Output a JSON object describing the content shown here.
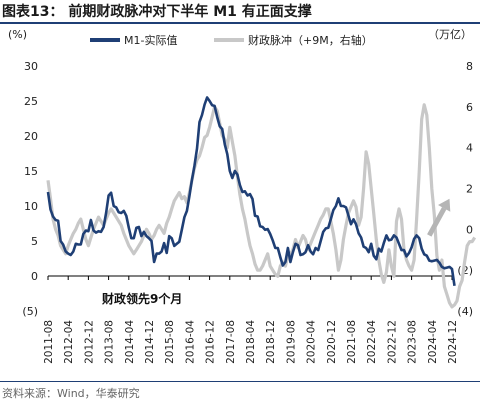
{
  "figure": {
    "title": "图表13：  前期财政脉冲对下半年 M1 有正面支撑",
    "source": "资料来源：Wind，华泰研究"
  },
  "chart_data": {
    "type": "line",
    "left_axis": {
      "unit_label": "(%)",
      "ylim": [
        -5,
        30
      ],
      "ticks": [
        -5,
        0,
        5,
        10,
        15,
        20,
        25,
        30
      ],
      "tick_labels": [
        "(5)",
        "0",
        "5",
        "10",
        "15",
        "20",
        "25",
        "30"
      ]
    },
    "right_axis": {
      "unit_label": "（万亿）",
      "ylim": [
        -4,
        8
      ],
      "ticks": [
        -4,
        -2,
        0,
        2,
        4,
        6,
        8
      ],
      "tick_labels": [
        "(4)",
        "(2)",
        "0",
        "2",
        "4",
        "6",
        "8"
      ]
    },
    "x_ticks": [
      "2011-08",
      "2012-04",
      "2012-12",
      "2013-08",
      "2014-04",
      "2014-12",
      "2015-08",
      "2016-04",
      "2016-12",
      "2017-08",
      "2018-04",
      "2018-12",
      "2019-08",
      "2020-04",
      "2020-12",
      "2021-08",
      "2022-04",
      "2022-12",
      "2023-08",
      "2024-04",
      "2024-12"
    ],
    "grid": false,
    "legend_position": "top",
    "annotation": "财政领先9个月",
    "series": [
      {
        "name": "M1-实际值",
        "axis": "left",
        "color": "#1f3f75",
        "start": "2011-08",
        "values": [
          12.0,
          9.5,
          8.5,
          8.0,
          7.9,
          5.0,
          4.5,
          3.5,
          3.2,
          3.0,
          3.5,
          4.6,
          4.5,
          4.5,
          6.0,
          6.5,
          6.4,
          8.0,
          6.5,
          6.2,
          6.4,
          6.3,
          7.0,
          9.0,
          11.5,
          11.9,
          10.0,
          9.8,
          9.1,
          9.0,
          9.3,
          8.6,
          6.9,
          5.4,
          5.4,
          6.9,
          7.0,
          5.7,
          6.3,
          5.7,
          5.4,
          5.0,
          2.0,
          3.2,
          3.2,
          3.5,
          4.7,
          3.3,
          5.7,
          5.4,
          4.3,
          4.6,
          4.9,
          6.6,
          8.4,
          9.3,
          11.4,
          13.7,
          15.7,
          18.2,
          22.0,
          23.0,
          24.5,
          25.5,
          25.0,
          24.4,
          24.3,
          22.7,
          21.4,
          21.0,
          18.8,
          17.4,
          15.0,
          14.0,
          15.0,
          14.5,
          13.0,
          12.0,
          12.1,
          11.5,
          11.7,
          11.0,
          8.6,
          8.5,
          7.1,
          7.0,
          6.6,
          6.7,
          6.0,
          5.1,
          4.0,
          4.0,
          2.7,
          1.5,
          2.0,
          4.0,
          2.0,
          3.4,
          4.6,
          4.4,
          3.0,
          3.1,
          3.4,
          4.4,
          3.5,
          3.1,
          4.0,
          3.7,
          5.0,
          6.3,
          6.8,
          6.9,
          8.1,
          9.4,
          10.0,
          11.1,
          10.0,
          10.0,
          9.8,
          8.6,
          7.4,
          8.1,
          7.4,
          6.1,
          5.5,
          4.2,
          4.0,
          3.4,
          4.6,
          2.9,
          2.4,
          3.9,
          3.5,
          4.7,
          5.8,
          5.1,
          5.2,
          5.8,
          5.5,
          4.6,
          3.7,
          3.7,
          2.8,
          3.3,
          4.1,
          5.3,
          5.8,
          5.4,
          3.9,
          3.1,
          2.9,
          2.2,
          2.1,
          2.2,
          2.3,
          1.9,
          1.3,
          1.1,
          1.2,
          1.3,
          1.0,
          -1.4
        ]
      },
      {
        "name": "财政脉冲（+9M，右轴）",
        "axis": "right",
        "color": "#c8c8c8",
        "start": "2011-08",
        "values": [
          2.4,
          1.5,
          0.5,
          0.0,
          -0.3,
          -0.8,
          -1.0,
          -1.2,
          -0.8,
          -0.5,
          -0.2,
          0.0,
          0.3,
          0.5,
          0.0,
          -0.5,
          -0.8,
          -0.4,
          0.0,
          0.3,
          0.6,
          0.4,
          0.2,
          0.5,
          0.8,
          1.0,
          0.8,
          0.6,
          0.4,
          0.2,
          -0.2,
          -0.5,
          -0.8,
          -1.0,
          -1.2,
          -1.0,
          -0.8,
          -0.6,
          -0.3,
          0.0,
          -0.2,
          -0.5,
          -0.3,
          0.0,
          0.2,
          0.0,
          -0.2,
          0.3,
          0.6,
          1.0,
          1.4,
          1.6,
          1.8,
          1.5,
          1.6,
          1.3,
          1.8,
          2.4,
          3.0,
          3.4,
          3.6,
          4.0,
          4.5,
          4.6,
          5.0,
          5.5,
          6.0,
          5.8,
          5.2,
          4.6,
          4.4,
          4.0,
          5.0,
          4.3,
          3.6,
          2.6,
          1.7,
          1.0,
          0.5,
          -0.2,
          -0.8,
          -1.2,
          -1.7,
          -2.0,
          -2.0,
          -1.8,
          -1.5,
          -1.2,
          -1.8,
          -2.0,
          -2.2,
          -2.3,
          -1.8,
          -1.6,
          -1.8,
          -1.3,
          -1.2,
          -1.0,
          -0.5,
          -0.9,
          -0.6,
          -0.3,
          -0.5,
          -1.0,
          -0.7,
          -0.4,
          -0.1,
          0.2,
          0.5,
          0.7,
          1.0,
          1.0,
          0.4,
          -0.2,
          -1.0,
          -2.0,
          -1.5,
          -0.5,
          0.2,
          0.8,
          1.1,
          1.4,
          1.1,
          0.2,
          0.6,
          2.0,
          3.8,
          3.2,
          2.0,
          0.8,
          -0.5,
          -1.5,
          -2.2,
          -2.6,
          -2.1,
          -1.0,
          -1.8,
          -2.3,
          0.4,
          1.0,
          0.5,
          -1.0,
          -1.5,
          -1.8,
          -2.0,
          -1.5,
          0.5,
          2.8,
          5.4,
          6.1,
          5.6,
          4.0,
          2.0,
          0.7,
          -1.3,
          -2.0,
          -1.5,
          -2.8,
          -3.2,
          -3.6,
          -3.8,
          -3.7,
          -3.5,
          -2.8,
          -2.5,
          -1.6,
          -0.8,
          -0.6,
          -0.6,
          -0.4
        ]
      }
    ],
    "arrow": {
      "from_month": "2024-03",
      "from_value": -0.3,
      "to_month": "2024-11",
      "to_value": 1.5,
      "axis": "right",
      "color": "#b5b5b5"
    }
  }
}
